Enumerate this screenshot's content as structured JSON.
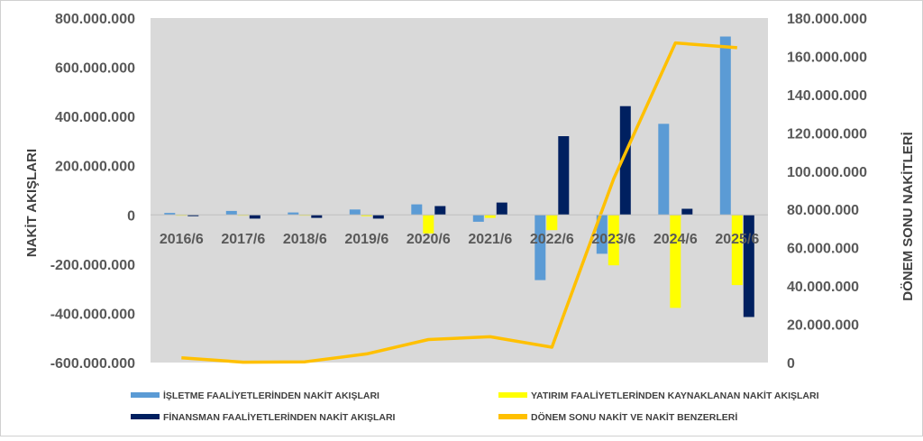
{
  "chart_data": {
    "type": "bar",
    "categories": [
      "2016/6",
      "2017/6",
      "2018/6",
      "2019/6",
      "2020/6",
      "2021/6",
      "2022/6",
      "2023/6",
      "2024/6",
      "2025/6"
    ],
    "series": [
      {
        "name": "İŞLETME FAALİYETLERİNDEN NAKİT AKIŞLARI",
        "axis": "left",
        "kind": "bar",
        "color": "#5B9BD5",
        "values": [
          8000000,
          16000000,
          10000000,
          22000000,
          43000000,
          -28000000,
          -265000000,
          -158000000,
          370000000,
          725000000
        ]
      },
      {
        "name": "YATIRIM FAALİYETLERİNDEN KAYNAKLANAN NAKİT AKIŞLARI",
        "axis": "left",
        "kind": "bar",
        "color": "#FFFF00",
        "values": [
          -2000000,
          -3000000,
          -2000000,
          -5000000,
          -75000000,
          -12000000,
          -62000000,
          -205000000,
          -378000000,
          -285000000
        ]
      },
      {
        "name": "FİNANSMAN FAALİYETLERİNDEN NAKİT AKIŞLARI",
        "axis": "left",
        "kind": "bar",
        "color": "#002060",
        "values": [
          -5000000,
          -15000000,
          -12000000,
          -15000000,
          36000000,
          50000000,
          320000000,
          442000000,
          25000000,
          -415000000
        ]
      },
      {
        "name": "DÖNEM SONU NAKİT VE NAKİT BENZERLERİ",
        "axis": "right",
        "kind": "line",
        "color": "#FFC000",
        "values": [
          2500000,
          200000,
          400000,
          4500000,
          12000000,
          13500000,
          8000000,
          96000000,
          167000000,
          164500000
        ]
      }
    ],
    "ylabel": "NAKİT AKIŞLARI",
    "y2label": "DÖNEM SONU NAKİTLERİ",
    "ylim": [
      -600000000,
      800000000
    ],
    "y2lim": [
      0,
      180000000
    ],
    "yticks": [
      "800.000.000",
      "600.000.000",
      "400.000.000",
      "200.000.000",
      "0",
      "-200.000.000",
      "-400.000.000",
      "-600.000.000"
    ],
    "y2ticks": [
      "180.000.000",
      "160.000.000",
      "140.000.000",
      "120.000.000",
      "100.000.000",
      "80.000.000",
      "60.000.000",
      "40.000.000",
      "20.000.000",
      "0"
    ],
    "grid": false,
    "legend_position": "bottom",
    "plot_background": "#D9D9D9"
  }
}
